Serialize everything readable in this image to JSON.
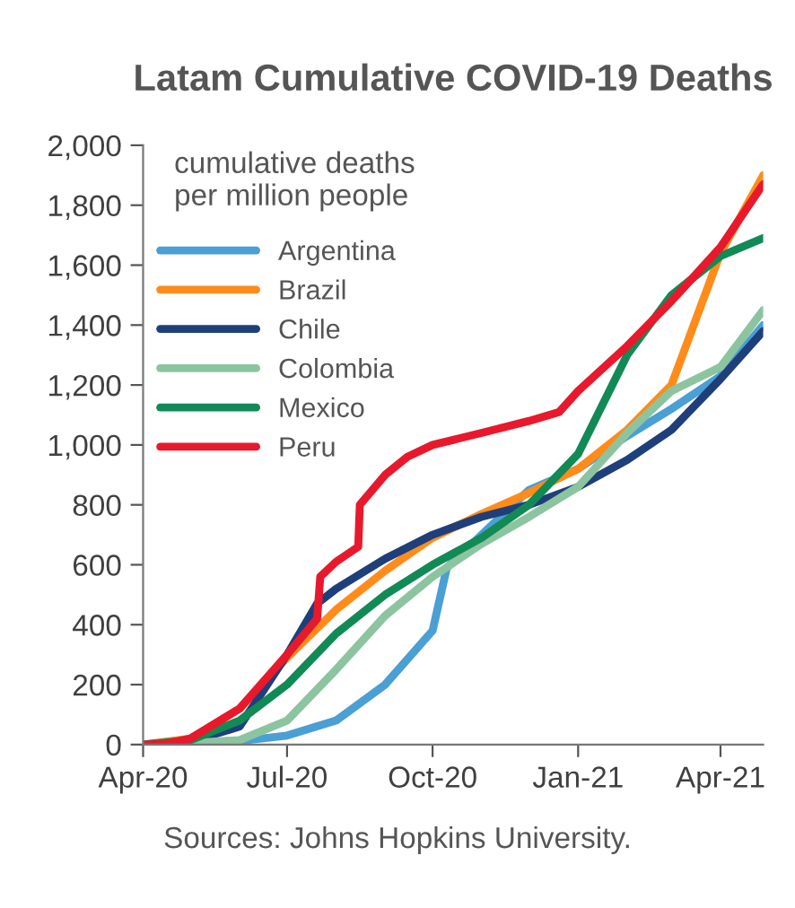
{
  "chart_data": {
    "type": "line",
    "title": "Latam Cumulative COVID-19 Deaths",
    "ylabel": "cumulative deaths\nper million people",
    "annotations": [
      "Sources: Johns Hopkins University."
    ],
    "xlim": [
      "2020-04-01",
      "2021-04-28"
    ],
    "xticks": [
      {
        "value": "2020-04-01",
        "label": "Apr-20"
      },
      {
        "value": "2020-07-01",
        "label": "Jul-20"
      },
      {
        "value": "2020-10-01",
        "label": "Oct-20"
      },
      {
        "value": "2021-01-01",
        "label": "Jan-21"
      },
      {
        "value": "2021-04-01",
        "label": "Apr-21"
      }
    ],
    "ylim": [
      0,
      2000
    ],
    "yticks": [
      0,
      200,
      400,
      600,
      800,
      {
        "value": 1000,
        "label": "1,000"
      },
      {
        "value": 1200,
        "label": "1,200"
      },
      {
        "value": 1400,
        "label": "1,400"
      },
      {
        "value": 1600,
        "label": "1,600"
      },
      {
        "value": 1800,
        "label": "1,800"
      },
      {
        "value": 2000,
        "label": "2,000"
      }
    ],
    "grid": false,
    "legend": "top left",
    "series": [
      {
        "name": "Argentina",
        "color": "#4a9fd4",
        "x": [
          "2020-04-01",
          "2020-05-01",
          "2020-06-01",
          "2020-07-01",
          "2020-08-01",
          "2020-09-01",
          "2020-10-01",
          "2020-10-10",
          "2020-11-01",
          "2020-12-01",
          "2021-01-01",
          "2021-02-01",
          "2021-03-01",
          "2021-04-01",
          "2021-04-28"
        ],
        "values": [
          0,
          5,
          12,
          30,
          80,
          200,
          380,
          590,
          700,
          850,
          920,
          1030,
          1120,
          1230,
          1400
        ]
      },
      {
        "name": "Brazil",
        "color": "#ff8c1a",
        "x": [
          "2020-04-01",
          "2020-05-01",
          "2020-06-01",
          "2020-07-01",
          "2020-08-01",
          "2020-09-01",
          "2020-10-01",
          "2020-11-01",
          "2020-12-01",
          "2021-01-01",
          "2021-02-01",
          "2021-03-01",
          "2021-04-01",
          "2021-04-28"
        ],
        "values": [
          0,
          20,
          120,
          290,
          450,
          580,
          690,
          770,
          840,
          920,
          1050,
          1200,
          1640,
          1900
        ]
      },
      {
        "name": "Chile",
        "color": "#1f3f7a",
        "x": [
          "2020-04-01",
          "2020-05-01",
          "2020-06-01",
          "2020-07-01",
          "2020-07-20",
          "2020-08-01",
          "2020-09-01",
          "2020-10-01",
          "2020-11-01",
          "2020-12-01",
          "2021-01-01",
          "2021-02-01",
          "2021-03-01",
          "2021-04-01",
          "2021-04-28"
        ],
        "values": [
          0,
          10,
          60,
          300,
          470,
          520,
          620,
          700,
          760,
          800,
          860,
          950,
          1050,
          1220,
          1380
        ]
      },
      {
        "name": "Colombia",
        "color": "#8cc4a0",
        "x": [
          "2020-04-01",
          "2020-05-01",
          "2020-06-01",
          "2020-07-01",
          "2020-08-01",
          "2020-09-01",
          "2020-10-01",
          "2020-11-01",
          "2020-12-01",
          "2021-01-01",
          "2021-02-01",
          "2021-03-01",
          "2021-04-01",
          "2021-04-28"
        ],
        "values": [
          0,
          5,
          15,
          80,
          250,
          430,
          560,
          670,
          760,
          860,
          1040,
          1180,
          1260,
          1450
        ]
      },
      {
        "name": "Mexico",
        "color": "#128a55",
        "x": [
          "2020-04-01",
          "2020-05-01",
          "2020-06-01",
          "2020-07-01",
          "2020-08-01",
          "2020-09-01",
          "2020-10-01",
          "2020-11-01",
          "2020-12-01",
          "2021-01-01",
          "2021-02-01",
          "2021-03-01",
          "2021-04-01",
          "2021-04-28"
        ],
        "values": [
          0,
          15,
          80,
          200,
          370,
          500,
          600,
          690,
          800,
          970,
          1300,
          1500,
          1630,
          1690
        ]
      },
      {
        "name": "Peru",
        "color": "#e8192c",
        "x": [
          "2020-04-01",
          "2020-04-15",
          "2020-05-01",
          "2020-06-01",
          "2020-07-01",
          "2020-07-20",
          "2020-07-22",
          "2020-08-01",
          "2020-08-15",
          "2020-08-16",
          "2020-09-01",
          "2020-09-15",
          "2020-10-01",
          "2020-11-01",
          "2020-12-01",
          "2020-12-20",
          "2021-01-01",
          "2021-02-01",
          "2021-03-01",
          "2021-04-01",
          "2021-04-28"
        ],
        "values": [
          0,
          2,
          20,
          120,
          300,
          420,
          560,
          610,
          660,
          800,
          900,
          960,
          1000,
          1040,
          1080,
          1110,
          1180,
          1330,
          1480,
          1660,
          1870
        ]
      }
    ]
  }
}
